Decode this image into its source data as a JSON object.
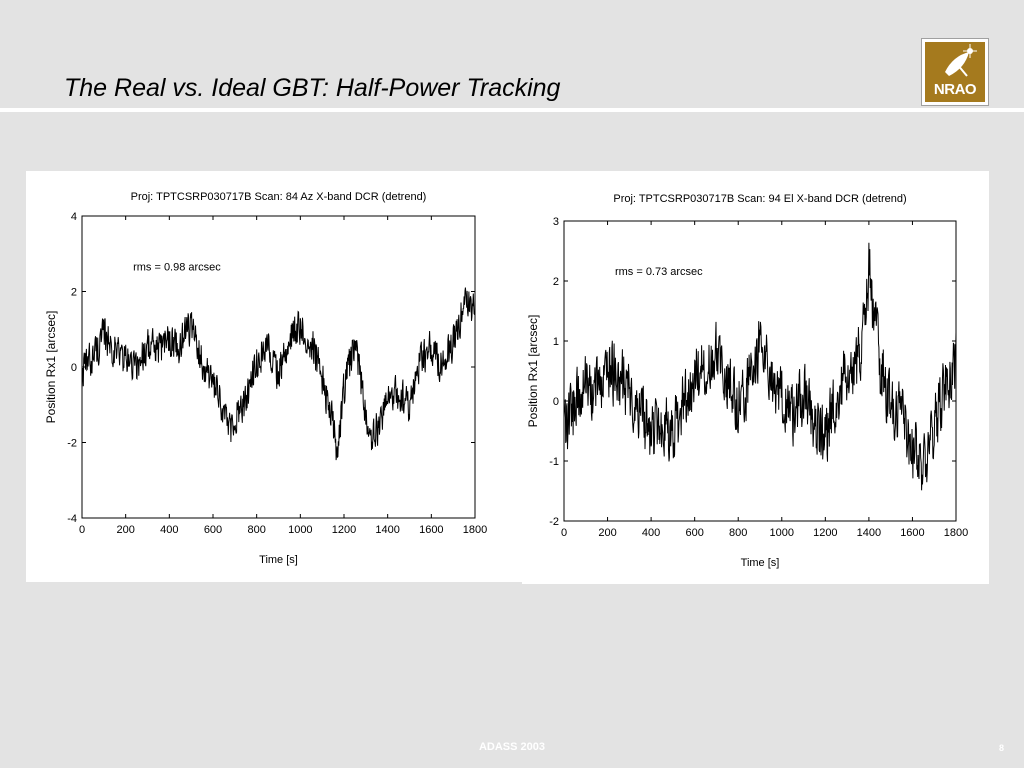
{
  "slide": {
    "title": "The Real vs. Ideal GBT: Half-Power Tracking",
    "footer_center": "ADASS 2003",
    "page_number": "8",
    "logo_text": "NRAO",
    "background_color": "#e3e3e3",
    "logo_color": "#a57a1e"
  },
  "chart_data": [
    {
      "type": "line",
      "title": "Proj: TPTCSRP030717B Scan:  84 Az X-band DCR (detrend)",
      "xlabel": "Time [s]",
      "ylabel": "Position Rx1 [arcsec]",
      "annotation": "rms = 0.98 arcsec",
      "xlim": [
        0,
        1800
      ],
      "ylim": [
        -4,
        4
      ],
      "xticks": [
        0,
        200,
        400,
        600,
        800,
        1000,
        1200,
        1400,
        1600,
        1800
      ],
      "yticks": [
        -4,
        -2,
        0,
        2,
        4
      ],
      "grid": false,
      "series": [
        {
          "x": [
            0,
            50,
            100,
            150,
            200,
            250,
            300,
            350,
            400,
            450,
            480,
            500,
            550,
            600,
            650,
            680,
            700,
            750,
            800,
            850,
            900,
            950,
            1000,
            1050,
            1100,
            1150,
            1170,
            1200,
            1250,
            1300,
            1330,
            1350,
            1400,
            1450,
            1500,
            1550,
            1600,
            1650,
            1700,
            1750,
            1800
          ],
          "y": [
            -0.2,
            0.3,
            0.8,
            0.5,
            0.2,
            0.0,
            0.6,
            0.4,
            0.8,
            0.5,
            1.2,
            1.0,
            0.2,
            -0.5,
            -1.2,
            -1.8,
            -1.3,
            -1.0,
            0.2,
            0.6,
            -0.2,
            0.8,
            1.0,
            0.7,
            -0.3,
            -1.5,
            -2.4,
            -0.5,
            0.6,
            -1.2,
            -2.0,
            -1.6,
            -0.9,
            -0.7,
            -1.0,
            0.2,
            0.5,
            0.0,
            0.7,
            1.6,
            1.5
          ],
          "amp": 0.45
        }
      ]
    },
    {
      "type": "line",
      "title": "Proj: TPTCSRP030717B Scan:  94 El X-band DCR (detrend)",
      "xlabel": "Time [s]",
      "ylabel": "Position Rx1 [arcsec]",
      "annotation": "rms = 0.73 arcsec",
      "xlim": [
        0,
        1800
      ],
      "ylim": [
        -2,
        3
      ],
      "xticks": [
        0,
        200,
        400,
        600,
        800,
        1000,
        1200,
        1400,
        1600,
        1800
      ],
      "yticks": [
        -2,
        -1,
        0,
        1,
        2,
        3
      ],
      "grid": false,
      "series": [
        {
          "x": [
            0,
            50,
            100,
            150,
            200,
            250,
            300,
            350,
            400,
            450,
            500,
            550,
            600,
            650,
            700,
            750,
            800,
            850,
            900,
            950,
            1000,
            1050,
            1100,
            1150,
            1200,
            1250,
            1300,
            1350,
            1380,
            1400,
            1420,
            1450,
            1500,
            1550,
            1600,
            1650,
            1700,
            1750,
            1800
          ],
          "y": [
            -0.6,
            -0.1,
            0.3,
            0.2,
            0.5,
            0.4,
            0.2,
            -0.2,
            -0.6,
            -0.3,
            -0.5,
            0.0,
            0.4,
            0.5,
            1.0,
            0.3,
            -0.2,
            0.3,
            1.0,
            0.4,
            0.0,
            -0.3,
            0.2,
            -0.5,
            -0.7,
            0.1,
            0.4,
            0.7,
            1.3,
            2.2,
            1.5,
            0.6,
            -0.1,
            -0.3,
            -0.8,
            -1.1,
            -0.4,
            0.3,
            0.6
          ],
          "amp": 0.5
        }
      ]
    }
  ]
}
